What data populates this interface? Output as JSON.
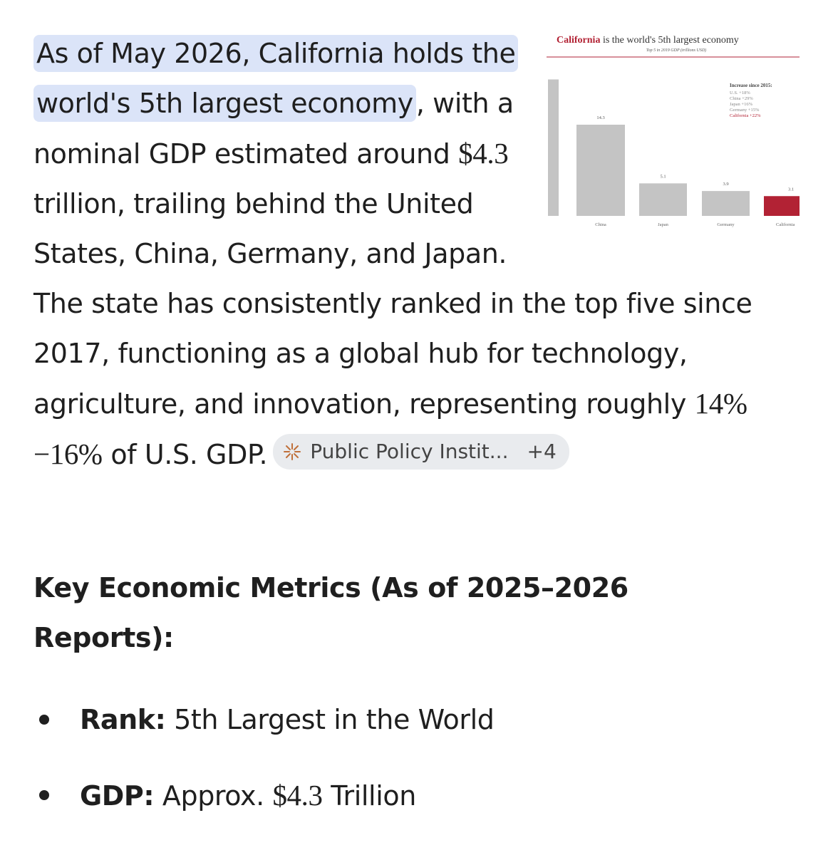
{
  "answer": {
    "highlighted": "As of May 2026, California holds the world's 5th largest economy",
    "text_1": ", with a nominal GDP estimated around",
    "math_1": "$4.3",
    "text_2": "trillion, trailing behind the United States, China, Germany, and Japan. The state has consistently ranked in the top five since 2017, functioning as a global hub for technology, agriculture, and innovation, representing roughly",
    "math_2": "14%−16%",
    "text_3": "of U.S. GDP.",
    "source_chip": {
      "label": "Public Policy Instit...",
      "count": "+4"
    }
  },
  "thumbnail": {
    "title_red": "California",
    "title_rest": "is the world's 5th largest economy",
    "subtitle": "Top 5 in 2019 GDP (trillions USD)",
    "legend_title": "Increase since 2015:",
    "legend": [
      "U.S. +18%",
      "China +29%",
      "Japan +16%",
      "Germany +15%",
      "California +22%"
    ],
    "categories": [
      null,
      "China",
      "Japan",
      "Germany",
      "California"
    ],
    "values": [
      21.4,
      14.3,
      5.1,
      3.9,
      3.1
    ],
    "bar_color": "#c4c4c4",
    "highlight_color": "#b22234"
  },
  "heading": "Key Economic Metrics (As of 2025–2026 Reports):",
  "bullets": [
    {
      "label": "Rank:",
      "text": "5th Largest in the World"
    },
    {
      "label": "GDP:",
      "text": "Approx.",
      "math": "$4.3",
      "text_after": "Trillion"
    }
  ]
}
